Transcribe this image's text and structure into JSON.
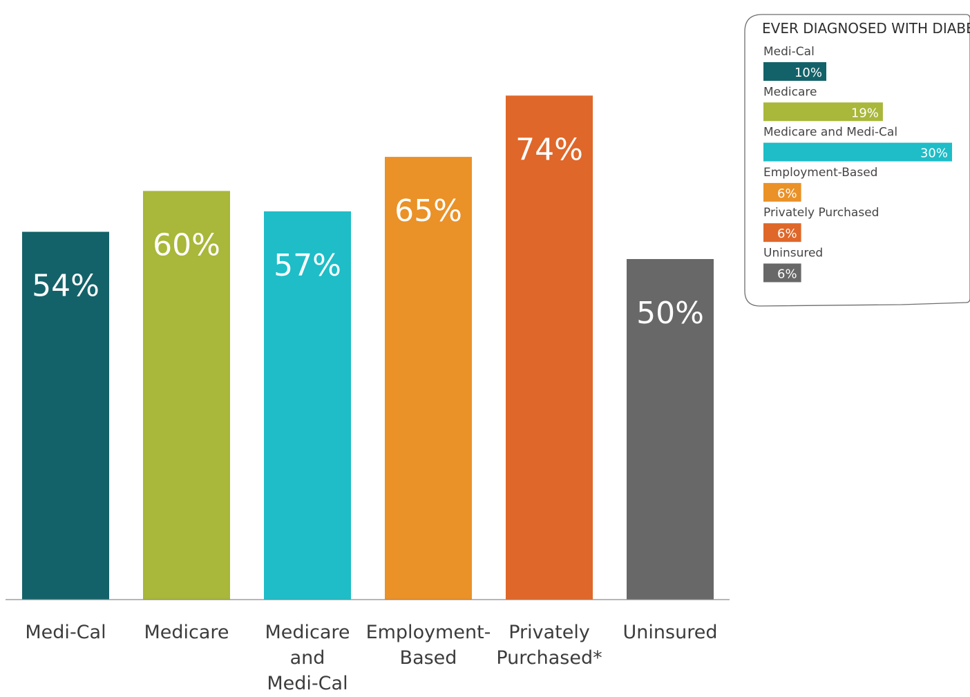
{
  "chart_data": [
    {
      "type": "bar",
      "categories": [
        "Medi-Cal",
        "Medicare",
        "Medicare and Medi-Cal",
        "Employment-Based",
        "Privately Purchased*",
        "Uninsured"
      ],
      "category_label_lines": [
        [
          "Medi-Cal"
        ],
        [
          "Medicare"
        ],
        [
          "Medicare",
          "and",
          "Medi-Cal"
        ],
        [
          "Employment-",
          "Based"
        ],
        [
          "Privately",
          "Purchased*"
        ],
        [
          "Uninsured"
        ]
      ],
      "values": [
        54,
        60,
        57,
        65,
        74,
        50
      ],
      "value_labels": [
        "54%",
        "60%",
        "57%",
        "65%",
        "74%",
        "50%"
      ],
      "colors": [
        "#136269",
        "#a9b73a",
        "#1ebdc7",
        "#ea9127",
        "#df6729",
        "#686868"
      ],
      "ylim": [
        0,
        80
      ],
      "grid": false,
      "legend": "none"
    },
    {
      "type": "bar",
      "orientation": "horizontal",
      "title": "EVER DIAGNOSED WITH DIABETES",
      "categories": [
        "Medi-Cal",
        "Medicare",
        "Medicare and Medi-Cal",
        "Employment-Based",
        "Privately Purchased",
        "Uninsured"
      ],
      "values": [
        10,
        19,
        30,
        6,
        6,
        6
      ],
      "value_labels": [
        "10%",
        "19%",
        "30%",
        "6%",
        "6%",
        "6%"
      ],
      "colors": [
        "#136269",
        "#a9b73a",
        "#1ebdc7",
        "#ea9127",
        "#df6729",
        "#686868"
      ],
      "xlim": [
        0,
        30
      ],
      "grid": false,
      "legend": "none"
    }
  ]
}
